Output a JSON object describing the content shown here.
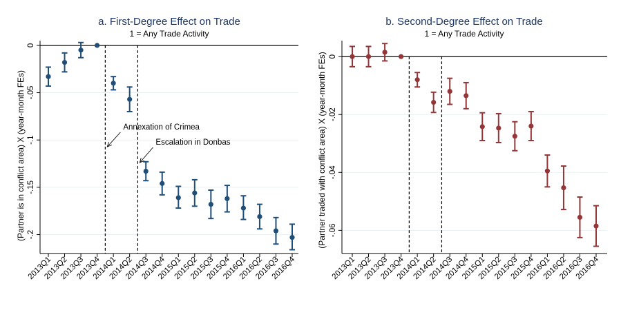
{
  "colors": {
    "panel_a_marker": "#1f4e79",
    "panel_b_marker": "#943638",
    "title": "#1c3562",
    "grid": "#eaf0f3",
    "axis": "#000000"
  },
  "chart_data": [
    {
      "type": "scatter",
      "subtype": "coefficient-plot-with-ci",
      "title": "a. First-Degree Effect on Trade",
      "subtitle": "1 = Any Trade Activity",
      "xlabel": "",
      "ylabel": "(Partner is in conflict area) X (year-month FEs)",
      "categories": [
        "2013Q1",
        "2013Q2",
        "2013Q3",
        "2013Q4",
        "2014Q1",
        "2014Q2",
        "2014Q3",
        "2014Q4",
        "2015Q1",
        "2015Q2",
        "2015Q3",
        "2015Q4",
        "2016Q1",
        "2016Q2",
        "2016Q3",
        "2016Q4"
      ],
      "values": [
        -0.033,
        -0.018,
        -0.005,
        0,
        -0.04,
        -0.057,
        -0.133,
        -0.146,
        -0.161,
        -0.156,
        -0.168,
        -0.162,
        -0.172,
        -0.181,
        -0.196,
        -0.203
      ],
      "ci_low": [
        -0.043,
        -0.028,
        -0.013,
        0,
        -0.047,
        -0.07,
        -0.143,
        -0.158,
        -0.172,
        -0.17,
        -0.183,
        -0.176,
        -0.184,
        -0.194,
        -0.21,
        -0.216
      ],
      "ci_high": [
        -0.023,
        -0.008,
        0.003,
        0,
        -0.033,
        -0.044,
        -0.123,
        -0.134,
        -0.149,
        -0.142,
        -0.153,
        -0.148,
        -0.159,
        -0.168,
        -0.182,
        -0.189
      ],
      "ylim": [
        -0.22,
        0.005
      ],
      "yticks": [
        0,
        -0.05,
        -0.1,
        -0.15,
        -0.2
      ],
      "ytick_labels": [
        "0",
        "-.05",
        "-.1",
        "-.15",
        "-.2"
      ],
      "reference_line": 0,
      "event_lines": [
        "2014Q1",
        "2014Q3"
      ],
      "annotations": [
        {
          "text": "Annexation of Crimea",
          "target": "2014Q1"
        },
        {
          "text": "Escalation in Donbas",
          "target": "2014Q3"
        }
      ]
    },
    {
      "type": "scatter",
      "subtype": "coefficient-plot-with-ci",
      "title": "b. Second-Degree Effect on Trade",
      "subtitle": "1 = Any Trade Activity",
      "xlabel": "",
      "ylabel": "(Partner traded with conflict area) X (year-month FEs)",
      "categories": [
        "2013Q1",
        "2013Q2",
        "2013Q3",
        "2013Q4",
        "2014Q1",
        "2014Q2",
        "2014Q3",
        "2014Q4",
        "2015Q1",
        "2015Q2",
        "2015Q3",
        "2015Q4",
        "2016Q1",
        "2016Q2",
        "2016Q3",
        "2016Q4"
      ],
      "values": [
        0,
        0,
        0.0015,
        0,
        -0.008,
        -0.0158,
        -0.012,
        -0.0135,
        -0.0242,
        -0.0247,
        -0.0275,
        -0.024,
        -0.0395,
        -0.0453,
        -0.0555,
        -0.0585
      ],
      "ci_low": [
        -0.0035,
        -0.0035,
        -0.0015,
        0,
        -0.0105,
        -0.0193,
        -0.0165,
        -0.018,
        -0.029,
        -0.0297,
        -0.0325,
        -0.029,
        -0.045,
        -0.0528,
        -0.0625,
        -0.0655
      ],
      "ci_high": [
        0.0035,
        0.0035,
        0.0045,
        0,
        -0.0055,
        -0.0123,
        -0.0075,
        -0.009,
        -0.0194,
        -0.0197,
        -0.0225,
        -0.019,
        -0.034,
        -0.0378,
        -0.0485,
        -0.0515
      ],
      "ylim": [
        -0.068,
        0.0055
      ],
      "yticks": [
        0,
        -0.02,
        -0.04,
        -0.06
      ],
      "ytick_labels": [
        "0",
        "-.02",
        "-.04",
        "-.06"
      ],
      "reference_line": 0,
      "event_lines": [
        "2014Q1",
        "2014Q3"
      ],
      "annotations": []
    }
  ]
}
